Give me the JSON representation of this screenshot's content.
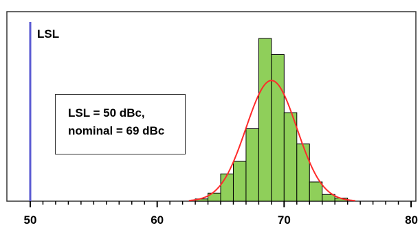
{
  "chart_data": {
    "type": "bar",
    "title": "",
    "xlabel": "",
    "ylabel": "",
    "xlim": [
      50,
      80
    ],
    "x_ticks": [
      "50",
      "60",
      "70",
      "80"
    ],
    "bin_width": 1,
    "histogram": {
      "bin_centers": [
        63.5,
        64.5,
        65.5,
        66.5,
        67.5,
        68.5,
        69.5,
        70.5,
        71.5,
        72.5,
        73.5,
        74.5
      ],
      "values": [
        0.5,
        1.8,
        6.1,
        8.9,
        16.2,
        36.4,
        32.8,
        19.8,
        12.8,
        4.3,
        1.5,
        0.7
      ],
      "color": "#8fcf5a"
    },
    "normal_fit": {
      "mean": 69,
      "peak": 27,
      "sigma": 2.0,
      "color": "#ff2a2a"
    },
    "lsl_line": {
      "x": 50,
      "label": "LSL",
      "color": "#5a5ad2"
    },
    "annotation": {
      "line1": "LSL = 50 dBc,",
      "line2": "nominal = 69 dBc"
    }
  }
}
